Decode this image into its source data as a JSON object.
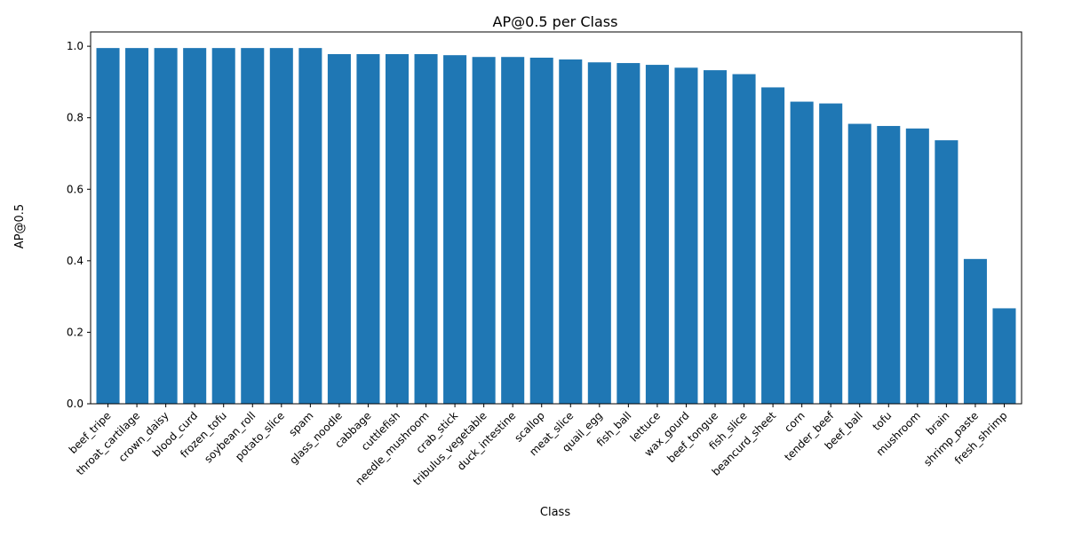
{
  "chart_data": {
    "type": "bar",
    "title": "AP@0.5 per Class",
    "xlabel": "Class",
    "ylabel": "AP@0.5",
    "ylim": [
      0,
      1.04
    ],
    "yticks": [
      "0.0",
      "0.2",
      "0.4",
      "0.6",
      "0.8",
      "1.0"
    ],
    "grid": false,
    "bar_color": "#1f77b4",
    "categories": [
      "beef_tripe",
      "throat_cartilage",
      "crown_daisy",
      "blood_curd",
      "frozen_tofu",
      "soybean_roll",
      "potato_slice",
      "spam",
      "glass_noodle",
      "cabbage",
      "cuttlefish",
      "needle_mushroom",
      "crab_stick",
      "tribulus_vegetable",
      "duck_intestine",
      "scallop",
      "meat_slice",
      "quail_egg",
      "fish_ball",
      "lettuce",
      "wax_gourd",
      "beef_tongue",
      "fish_slice",
      "beancurd_sheet",
      "corn",
      "tender_beef",
      "beef_ball",
      "tofu",
      "mushroom",
      "brain",
      "shrimp_paste",
      "fresh_shrimp"
    ],
    "values": [
      0.995,
      0.995,
      0.995,
      0.995,
      0.995,
      0.995,
      0.995,
      0.995,
      0.978,
      0.978,
      0.978,
      0.978,
      0.975,
      0.97,
      0.97,
      0.968,
      0.963,
      0.955,
      0.953,
      0.948,
      0.94,
      0.933,
      0.922,
      0.885,
      0.845,
      0.84,
      0.783,
      0.777,
      0.77,
      0.737,
      0.405,
      0.267
    ]
  }
}
